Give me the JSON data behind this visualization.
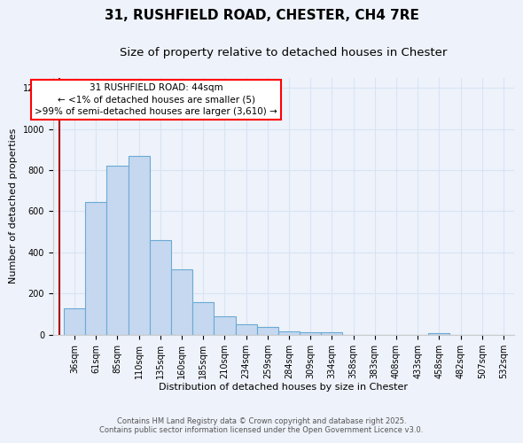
{
  "title1": "31, RUSHFIELD ROAD, CHESTER, CH4 7RE",
  "title2": "Size of property relative to detached houses in Chester",
  "xlabel": "Distribution of detached houses by size in Chester",
  "ylabel": "Number of detached properties",
  "categories": [
    "36sqm",
    "61sqm",
    "85sqm",
    "110sqm",
    "135sqm",
    "160sqm",
    "185sqm",
    "210sqm",
    "234sqm",
    "259sqm",
    "284sqm",
    "309sqm",
    "334sqm",
    "358sqm",
    "383sqm",
    "408sqm",
    "433sqm",
    "458sqm",
    "482sqm",
    "507sqm",
    "532sqm"
  ],
  "values": [
    130,
    645,
    820,
    870,
    460,
    320,
    160,
    90,
    50,
    40,
    15,
    12,
    12,
    0,
    0,
    0,
    0,
    10,
    0,
    0,
    0
  ],
  "bar_color": "#c5d8f0",
  "bar_edge_color": "#6aaad4",
  "background_color": "#eef2fa",
  "grid_color": "#d8e4f5",
  "ylim": [
    0,
    1250
  ],
  "yticks": [
    0,
    200,
    400,
    600,
    800,
    1000,
    1200
  ],
  "red_line_x": -0.72,
  "annotation_text_line1": "31 RUSHFIELD ROAD: 44sqm",
  "annotation_text_line2": "← <1% of detached houses are smaller (5)",
  "annotation_text_line3": ">99% of semi-detached houses are larger (3,610) →",
  "footer1": "Contains HM Land Registry data © Crown copyright and database right 2025.",
  "footer2": "Contains public sector information licensed under the Open Government Licence v3.0.",
  "title_fontsize": 11,
  "subtitle_fontsize": 9.5,
  "axis_fontsize": 8,
  "tick_fontsize": 7,
  "ann_fontsize": 7.5
}
